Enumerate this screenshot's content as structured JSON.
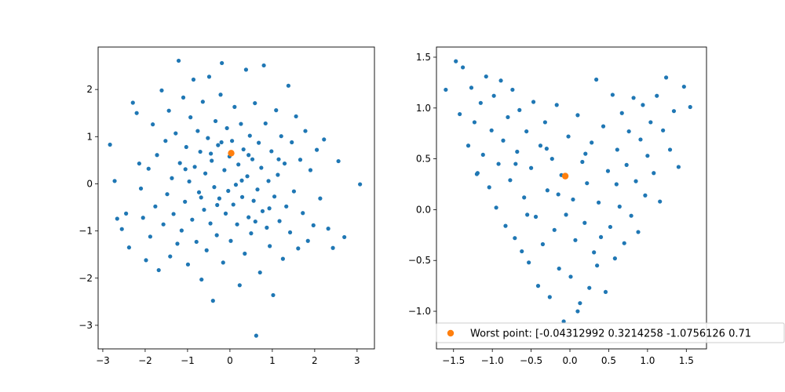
{
  "chart_data": [
    {
      "type": "scatter",
      "title": "",
      "xlabel": "",
      "ylabel": "",
      "xlim": [
        -3.11,
        3.41
      ],
      "ylim": [
        -3.5,
        2.9
      ],
      "xticks": [
        -3,
        -2,
        -1,
        0,
        1,
        2,
        3
      ],
      "yticks": [
        -3,
        -2,
        -1,
        0,
        1,
        2
      ],
      "grid": false,
      "series": [
        {
          "color": "#1f77b4",
          "points": [
            [
              -2.83,
              0.83
            ],
            [
              -2.72,
              0.06
            ],
            [
              -2.66,
              -0.74
            ],
            [
              -2.55,
              -0.96
            ],
            [
              -2.45,
              -0.63
            ],
            [
              -2.38,
              -1.35
            ],
            [
              -2.29,
              1.72
            ],
            [
              -2.2,
              1.5
            ],
            [
              -2.14,
              0.43
            ],
            [
              -2.1,
              -0.1
            ],
            [
              -2.05,
              -0.72
            ],
            [
              -1.98,
              -1.62
            ],
            [
              -1.92,
              0.32
            ],
            [
              -1.88,
              -1.12
            ],
            [
              -1.82,
              1.26
            ],
            [
              -1.76,
              -0.48
            ],
            [
              -1.72,
              0.61
            ],
            [
              -1.68,
              -1.83
            ],
            [
              -1.61,
              1.98
            ],
            [
              -1.57,
              -0.86
            ],
            [
              -1.52,
              0.91
            ],
            [
              -1.48,
              -0.22
            ],
            [
              -1.44,
              1.55
            ],
            [
              -1.41,
              -1.54
            ],
            [
              -1.37,
              0.12
            ],
            [
              -1.33,
              -0.64
            ],
            [
              -1.28,
              1.07
            ],
            [
              -1.24,
              -1.27
            ],
            [
              -1.21,
              2.61
            ],
            [
              -1.18,
              0.44
            ],
            [
              -1.14,
              -0.99
            ],
            [
              -1.1,
              1.83
            ],
            [
              -1.06,
              -0.38
            ],
            [
              -1.03,
              0.78
            ],
            [
              -0.99,
              -1.71
            ],
            [
              -0.96,
              0.05
            ],
            [
              -0.93,
              1.41
            ],
            [
              -0.89,
              -0.76
            ],
            [
              -0.86,
              2.21
            ],
            [
              -0.83,
              0.36
            ],
            [
              -0.79,
              -1.23
            ],
            [
              -0.76,
              1.12
            ],
            [
              -0.73,
              -0.18
            ],
            [
              -0.7,
              0.68
            ],
            [
              -0.67,
              -2.03
            ],
            [
              -0.64,
              1.74
            ],
            [
              -0.61,
              -0.55
            ],
            [
              -0.58,
              0.22
            ],
            [
              -0.55,
              -1.41
            ],
            [
              -0.52,
              0.97
            ],
            [
              -0.49,
              2.27
            ],
            [
              -0.46,
              -0.84
            ],
            [
              -0.43,
              0.49
            ],
            [
              -0.4,
              -2.48
            ],
            [
              -0.37,
              -0.07
            ],
            [
              -0.34,
              1.33
            ],
            [
              -0.31,
              -1.09
            ],
            [
              -0.28,
              0.82
            ],
            [
              -0.25,
              -0.31
            ],
            [
              -0.22,
              1.89
            ],
            [
              -0.19,
              2.56
            ],
            [
              -0.16,
              -1.67
            ],
            [
              -0.13,
              0.29
            ],
            [
              -0.1,
              -0.63
            ],
            [
              -0.07,
              1.18
            ],
            [
              -0.04,
              -0.15
            ],
            [
              -0.01,
              0.58
            ],
            [
              0.02,
              -1.21
            ],
            [
              0.05,
              0.91
            ],
            [
              0.08,
              -0.44
            ],
            [
              0.11,
              1.63
            ],
            [
              0.14,
              -0.02
            ],
            [
              0.17,
              -0.86
            ],
            [
              0.2,
              0.41
            ],
            [
              0.23,
              -2.15
            ],
            [
              0.26,
              1.27
            ],
            [
              0.29,
              -0.28
            ],
            [
              0.32,
              0.73
            ],
            [
              0.35,
              -1.48
            ],
            [
              0.38,
              2.42
            ],
            [
              0.41,
              0.16
            ],
            [
              0.44,
              -0.71
            ],
            [
              0.47,
              1.02
            ],
            [
              0.5,
              -1.05
            ],
            [
              0.53,
              0.52
            ],
            [
              0.56,
              -0.36
            ],
            [
              0.59,
              1.71
            ],
            [
              0.62,
              -3.22
            ],
            [
              0.65,
              -0.12
            ],
            [
              0.68,
              0.87
            ],
            [
              0.71,
              -1.88
            ],
            [
              0.74,
              0.34
            ],
            [
              0.77,
              -0.58
            ],
            [
              0.8,
              2.51
            ],
            [
              0.84,
              1.28
            ],
            [
              0.87,
              -0.93
            ],
            [
              0.91,
              0.06
            ],
            [
              0.94,
              -1.32
            ],
            [
              0.98,
              0.69
            ],
            [
              1.02,
              -2.36
            ],
            [
              1.05,
              -0.27
            ],
            [
              1.09,
              1.56
            ],
            [
              1.13,
              0.19
            ],
            [
              1.17,
              -0.79
            ],
            [
              1.21,
              1.01
            ],
            [
              1.25,
              -1.59
            ],
            [
              1.29,
              0.43
            ],
            [
              1.33,
              -0.48
            ],
            [
              1.38,
              2.08
            ],
            [
              1.42,
              -1.03
            ],
            [
              1.46,
              0.88
            ],
            [
              1.51,
              -0.16
            ],
            [
              1.56,
              1.43
            ],
            [
              1.61,
              -1.37
            ],
            [
              1.66,
              0.51
            ],
            [
              1.72,
              -0.62
            ],
            [
              1.78,
              1.12
            ],
            [
              1.84,
              -1.21
            ],
            [
              1.9,
              0.29
            ],
            [
              1.97,
              -0.88
            ],
            [
              2.05,
              0.72
            ],
            [
              2.13,
              -0.31
            ],
            [
              2.22,
              0.94
            ],
            [
              2.32,
              -0.95
            ],
            [
              2.43,
              -1.36
            ],
            [
              2.56,
              0.48
            ],
            [
              2.7,
              -1.13
            ],
            [
              3.07,
              -0.01
            ],
            [
              -0.45,
              0.64
            ],
            [
              -0.2,
              0.88
            ],
            [
              0.28,
              0.07
            ],
            [
              0.44,
              0.61
            ],
            [
              -0.68,
              -0.29
            ],
            [
              0.93,
              -0.52
            ],
            [
              -1.05,
              0.31
            ],
            [
              1.15,
              0.52
            ],
            [
              -0.3,
              -0.45
            ],
            [
              0.6,
              -0.8
            ]
          ]
        },
        {
          "color": "#ff7f0e",
          "points": [
            [
              0.03,
              0.65
            ]
          ]
        }
      ]
    },
    {
      "type": "scatter",
      "title": "",
      "xlabel": "",
      "ylabel": "",
      "xlim": [
        -1.72,
        1.76
      ],
      "ylim": [
        -1.37,
        1.6
      ],
      "xticks": [
        -1.5,
        -1.0,
        -0.5,
        0.0,
        0.5,
        1.0,
        1.5
      ],
      "yticks": [
        -1.0,
        -0.5,
        0.0,
        0.5,
        1.0,
        1.5
      ],
      "grid": false,
      "legend": {
        "placement": "lower right",
        "entries": [
          {
            "label": "Worst point: [-0.04312992  0.3214258  -1.0756126   0.71",
            "color": "#ff7f0e"
          }
        ]
      },
      "series": [
        {
          "color": "#1f77b4",
          "points": [
            [
              -1.6,
              1.18
            ],
            [
              -1.47,
              1.46
            ],
            [
              -1.42,
              0.94
            ],
            [
              -1.38,
              1.4
            ],
            [
              -1.31,
              0.63
            ],
            [
              -1.27,
              1.2
            ],
            [
              -1.23,
              0.86
            ],
            [
              -1.19,
              0.36
            ],
            [
              -1.15,
              1.05
            ],
            [
              -1.12,
              0.54
            ],
            [
              -1.08,
              1.31
            ],
            [
              -1.04,
              0.22
            ],
            [
              -1.01,
              0.78
            ],
            [
              -0.98,
              1.12
            ],
            [
              -0.95,
              0.02
            ],
            [
              -0.92,
              0.45
            ],
            [
              -0.89,
              1.27
            ],
            [
              -0.86,
              0.68
            ],
            [
              -0.83,
              -0.16
            ],
            [
              -0.8,
              0.91
            ],
            [
              -0.77,
              0.29
            ],
            [
              -0.74,
              1.18
            ],
            [
              -0.71,
              -0.28
            ],
            [
              -0.68,
              0.57
            ],
            [
              -0.65,
              0.98
            ],
            [
              -0.62,
              -0.41
            ],
            [
              -0.59,
              0.12
            ],
            [
              -0.56,
              0.77
            ],
            [
              -0.53,
              -0.52
            ],
            [
              -0.5,
              0.41
            ],
            [
              -0.47,
              1.06
            ],
            [
              -0.44,
              -0.07
            ],
            [
              -0.41,
              -0.75
            ],
            [
              -0.38,
              0.63
            ],
            [
              -0.35,
              -0.34
            ],
            [
              -0.32,
              0.86
            ],
            [
              -0.29,
              0.19
            ],
            [
              -0.26,
              -0.86
            ],
            [
              -0.23,
              0.5
            ],
            [
              -0.2,
              -0.2
            ],
            [
              -0.17,
              1.03
            ],
            [
              -0.14,
              -0.58
            ],
            [
              -0.11,
              0.34
            ],
            [
              -0.08,
              -1.1
            ],
            [
              -0.05,
              -0.05
            ],
            [
              -0.02,
              0.72
            ],
            [
              0.01,
              -0.66
            ],
            [
              0.04,
              0.1
            ],
            [
              0.07,
              -0.3
            ],
            [
              0.1,
              0.93
            ],
            [
              0.13,
              -0.92
            ],
            [
              0.16,
              0.47
            ],
            [
              0.19,
              -0.13
            ],
            [
              0.22,
              0.26
            ],
            [
              0.25,
              -0.77
            ],
            [
              0.28,
              0.66
            ],
            [
              0.31,
              -0.42
            ],
            [
              0.34,
              1.28
            ],
            [
              0.37,
              0.07
            ],
            [
              0.4,
              -0.27
            ],
            [
              0.43,
              0.82
            ],
            [
              0.46,
              -0.81
            ],
            [
              0.49,
              0.38
            ],
            [
              0.52,
              -0.17
            ],
            [
              0.55,
              1.13
            ],
            [
              0.58,
              -0.48
            ],
            [
              0.61,
              0.59
            ],
            [
              0.64,
              0.03
            ],
            [
              0.67,
              0.95
            ],
            [
              0.7,
              -0.33
            ],
            [
              0.73,
              0.44
            ],
            [
              0.76,
              0.77
            ],
            [
              0.79,
              -0.06
            ],
            [
              0.82,
              1.1
            ],
            [
              0.85,
              0.28
            ],
            [
              0.88,
              -0.22
            ],
            [
              0.91,
              0.69
            ],
            [
              0.94,
              1.03
            ],
            [
              0.97,
              0.14
            ],
            [
              1.0,
              0.53
            ],
            [
              1.04,
              0.86
            ],
            [
              1.08,
              0.36
            ],
            [
              1.12,
              1.12
            ],
            [
              1.16,
              0.08
            ],
            [
              1.2,
              0.78
            ],
            [
              1.24,
              1.3
            ],
            [
              1.29,
              0.59
            ],
            [
              1.34,
              0.97
            ],
            [
              1.4,
              0.42
            ],
            [
              1.47,
              1.21
            ],
            [
              1.55,
              1.01
            ],
            [
              -1.2,
              0.35
            ],
            [
              -0.7,
              0.45
            ],
            [
              -0.3,
              0.6
            ],
            [
              0.2,
              0.55
            ],
            [
              0.6,
              0.25
            ],
            [
              -0.55,
              -0.05
            ],
            [
              -0.15,
              0.15
            ],
            [
              0.35,
              -0.55
            ],
            [
              0.1,
              -1.0
            ]
          ]
        },
        {
          "color": "#ff7f0e",
          "points": [
            [
              -0.06,
              0.33
            ]
          ]
        }
      ]
    }
  ]
}
